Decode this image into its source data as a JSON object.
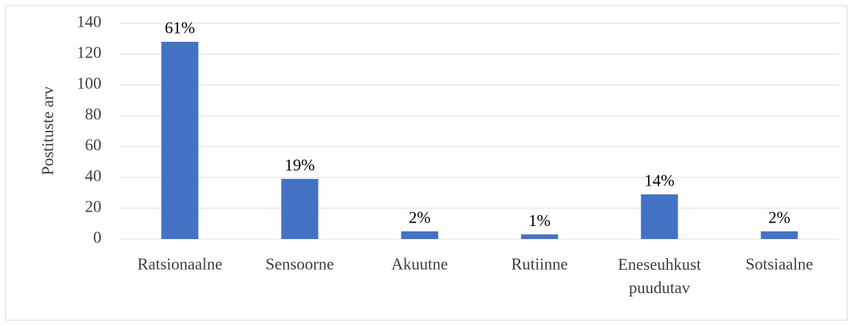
{
  "chart_data": {
    "type": "bar",
    "y_axis_label": "Postituste arv",
    "categories": [
      "Ratsionaalne",
      "Sensoorne",
      "Akuutne",
      "Rutiinne",
      "Eneseuhkust puudutav",
      "Sotsiaalne"
    ],
    "values": [
      128,
      39,
      5,
      3,
      29,
      5
    ],
    "value_labels": [
      "61%",
      "19%",
      "2%",
      "1%",
      "14%",
      "2%"
    ],
    "color": "#4472c4",
    "ylim": [
      0,
      140
    ],
    "yticks": [
      0,
      20,
      40,
      60,
      80,
      100,
      120,
      140
    ],
    "grid": true
  }
}
